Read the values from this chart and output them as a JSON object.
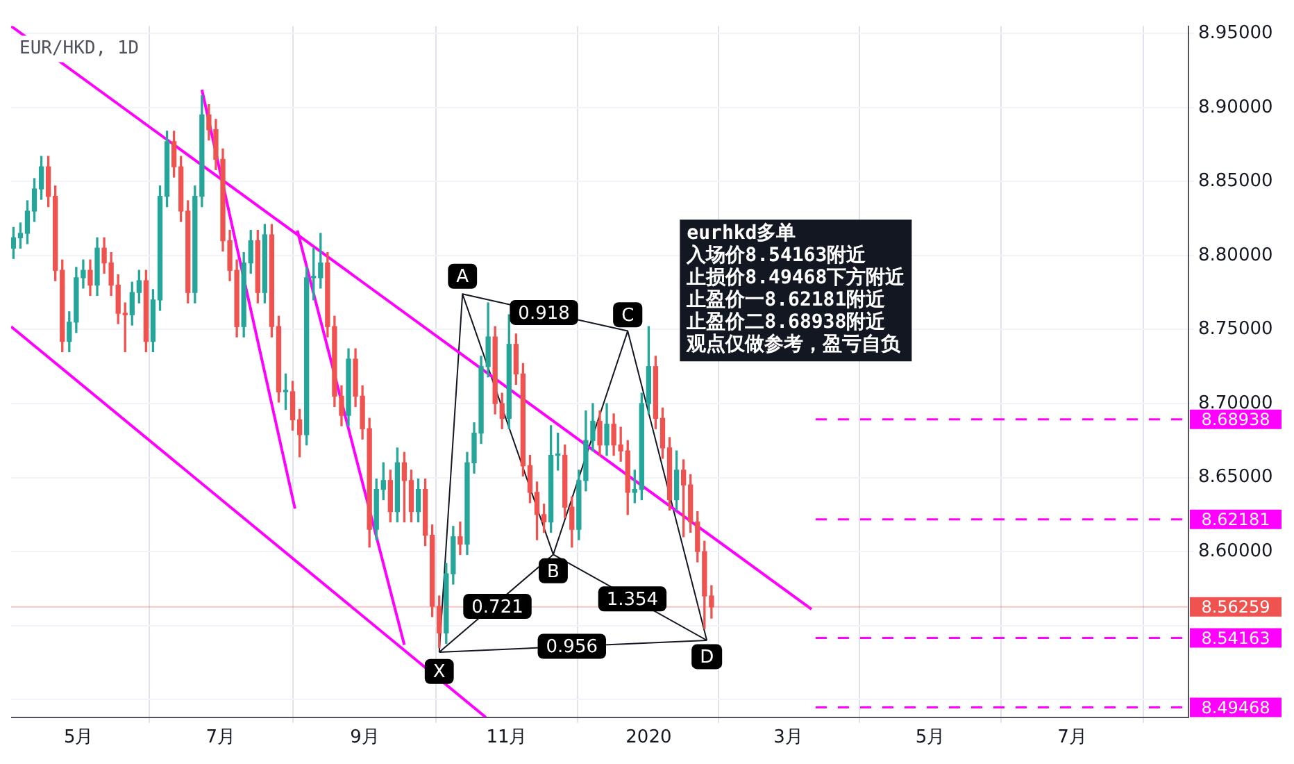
{
  "chart_data": {
    "type": "candlestick",
    "title": "EUR/HKD, 1D",
    "x": [
      "2019-04-03",
      "2019-04-06",
      "2019-04-09",
      "2019-04-12",
      "2019-04-15",
      "2019-04-18",
      "2019-04-21",
      "2019-04-24",
      "2019-04-27",
      "2019-04-30",
      "2019-05-03",
      "2019-05-06",
      "2019-05-09",
      "2019-05-12",
      "2019-05-15",
      "2019-05-18",
      "2019-05-21",
      "2019-05-24",
      "2019-05-27",
      "2019-05-30",
      "2019-06-02",
      "2019-06-05",
      "2019-06-08",
      "2019-06-11",
      "2019-06-14",
      "2019-06-17",
      "2019-06-20",
      "2019-06-23",
      "2019-06-26",
      "2019-06-29",
      "2019-07-02",
      "2019-07-05",
      "2019-07-08",
      "2019-07-11",
      "2019-07-14",
      "2019-07-17",
      "2019-07-20",
      "2019-07-23",
      "2019-07-26",
      "2019-07-29",
      "2019-08-01",
      "2019-08-04",
      "2019-08-07",
      "2019-08-10",
      "2019-08-13",
      "2019-08-16",
      "2019-08-19",
      "2019-08-22",
      "2019-08-25",
      "2019-08-28",
      "2019-08-31",
      "2019-09-03",
      "2019-09-06",
      "2019-09-09",
      "2019-09-12",
      "2019-09-15",
      "2019-09-18",
      "2019-09-21",
      "2019-09-24",
      "2019-09-27",
      "2019-09-30",
      "2019-10-03",
      "2019-10-06",
      "2019-10-09",
      "2019-10-12",
      "2019-10-15",
      "2019-10-18",
      "2019-10-21",
      "2019-10-24",
      "2019-10-27",
      "2019-10-30",
      "2019-11-02",
      "2019-11-05",
      "2019-11-08",
      "2019-11-11",
      "2019-11-14",
      "2019-11-17",
      "2019-11-20",
      "2019-11-23",
      "2019-11-26",
      "2019-11-29",
      "2019-12-02",
      "2019-12-05",
      "2019-12-08",
      "2019-12-11",
      "2019-12-14",
      "2019-12-17",
      "2019-12-20",
      "2019-12-23",
      "2019-12-26",
      "2019-12-29",
      "2020-01-01",
      "2020-01-04",
      "2020-01-07",
      "2020-01-10",
      "2020-01-13",
      "2020-01-16",
      "2020-01-19",
      "2020-01-22",
      "2020-01-25",
      "2020-01-28"
    ],
    "ohlc": [
      [
        8.805,
        8.819,
        8.798,
        8.812
      ],
      [
        8.812,
        8.822,
        8.805,
        8.815
      ],
      [
        8.815,
        8.837,
        8.808,
        8.83
      ],
      [
        8.83,
        8.852,
        8.823,
        8.845
      ],
      [
        8.845,
        8.867,
        8.838,
        8.86
      ],
      [
        8.86,
        8.867,
        8.833,
        8.84
      ],
      [
        8.84,
        8.847,
        8.783,
        8.79
      ],
      [
        8.79,
        8.797,
        8.735,
        8.742
      ],
      [
        8.742,
        8.762,
        8.735,
        8.755
      ],
      [
        8.755,
        8.792,
        8.748,
        8.785
      ],
      [
        8.785,
        8.797,
        8.778,
        8.79
      ],
      [
        8.79,
        8.797,
        8.773,
        8.78
      ],
      [
        8.78,
        8.812,
        8.773,
        8.805
      ],
      [
        8.805,
        8.812,
        8.788,
        8.795
      ],
      [
        8.795,
        8.802,
        8.773,
        8.78
      ],
      [
        8.78,
        8.787,
        8.754,
        8.761
      ],
      [
        8.761,
        8.768,
        8.735,
        8.76
      ],
      [
        8.76,
        8.782,
        8.753,
        8.775
      ],
      [
        8.775,
        8.79,
        8.768,
        8.783
      ],
      [
        8.783,
        8.79,
        8.735,
        8.742
      ],
      [
        8.742,
        8.777,
        8.735,
        8.77
      ],
      [
        8.77,
        8.847,
        8.763,
        8.84
      ],
      [
        8.84,
        8.884,
        8.833,
        8.877
      ],
      [
        8.877,
        8.884,
        8.853,
        8.86
      ],
      [
        8.86,
        8.867,
        8.823,
        8.83
      ],
      [
        8.83,
        8.837,
        8.768,
        8.775
      ],
      [
        8.775,
        8.847,
        8.768,
        8.84
      ],
      [
        8.84,
        8.908,
        8.833,
        8.895
      ],
      [
        8.895,
        8.902,
        8.878,
        8.885
      ],
      [
        8.885,
        8.892,
        8.858,
        8.865
      ],
      [
        8.865,
        8.872,
        8.803,
        8.81
      ],
      [
        8.81,
        8.817,
        8.783,
        8.79
      ],
      [
        8.79,
        8.797,
        8.745,
        8.752
      ],
      [
        8.752,
        8.802,
        8.745,
        8.795
      ],
      [
        8.795,
        8.817,
        8.788,
        8.81
      ],
      [
        8.81,
        8.817,
        8.768,
        8.775
      ],
      [
        8.775,
        8.821,
        8.768,
        8.814
      ],
      [
        8.814,
        8.821,
        8.745,
        8.752
      ],
      [
        8.752,
        8.759,
        8.701,
        8.708
      ],
      [
        8.708,
        8.72,
        8.696,
        8.708
      ],
      [
        8.708,
        8.715,
        8.682,
        8.689
      ],
      [
        8.689,
        8.696,
        8.664,
        8.679
      ],
      [
        8.679,
        8.792,
        8.672,
        8.785
      ],
      [
        8.785,
        8.805,
        8.77,
        8.785
      ],
      [
        8.785,
        8.815,
        8.778,
        8.795
      ],
      [
        8.795,
        8.802,
        8.745,
        8.752
      ],
      [
        8.752,
        8.759,
        8.698,
        8.705
      ],
      [
        8.705,
        8.712,
        8.685,
        8.692
      ],
      [
        8.692,
        8.737,
        8.685,
        8.73
      ],
      [
        8.73,
        8.737,
        8.698,
        8.705
      ],
      [
        8.705,
        8.712,
        8.676,
        8.683
      ],
      [
        8.683,
        8.69,
        8.603,
        8.615
      ],
      [
        8.615,
        8.649,
        8.608,
        8.642
      ],
      [
        8.642,
        8.66,
        8.635,
        8.648
      ],
      [
        8.648,
        8.655,
        8.62,
        8.627
      ],
      [
        8.627,
        8.67,
        8.62,
        8.66
      ],
      [
        8.66,
        8.667,
        8.62,
        8.648
      ],
      [
        8.648,
        8.655,
        8.62,
        8.627
      ],
      [
        8.627,
        8.649,
        8.62,
        8.642
      ],
      [
        8.642,
        8.649,
        8.604,
        8.611
      ],
      [
        8.611,
        8.618,
        8.556,
        8.563
      ],
      [
        8.563,
        8.57,
        8.535,
        8.545
      ],
      [
        8.545,
        8.592,
        8.538,
        8.585
      ],
      [
        8.585,
        8.617,
        8.578,
        8.61
      ],
      [
        8.61,
        8.62,
        8.598,
        8.605
      ],
      [
        8.605,
        8.667,
        8.598,
        8.66
      ],
      [
        8.66,
        8.687,
        8.653,
        8.68
      ],
      [
        8.68,
        8.732,
        8.673,
        8.725
      ],
      [
        8.725,
        8.768,
        8.718,
        8.745
      ],
      [
        8.745,
        8.752,
        8.693,
        8.7
      ],
      [
        8.7,
        8.707,
        8.683,
        8.69
      ],
      [
        8.69,
        8.76,
        8.683,
        8.74
      ],
      [
        8.74,
        8.747,
        8.713,
        8.72
      ],
      [
        8.72,
        8.727,
        8.651,
        8.658
      ],
      [
        8.658,
        8.665,
        8.633,
        8.64
      ],
      [
        8.64,
        8.647,
        8.608,
        8.625
      ],
      [
        8.625,
        8.632,
        8.613,
        8.62
      ],
      [
        8.62,
        8.685,
        8.613,
        8.665
      ],
      [
        8.665,
        8.68,
        8.655,
        8.665
      ],
      [
        8.665,
        8.672,
        8.623,
        8.63
      ],
      [
        8.63,
        8.637,
        8.603,
        8.615
      ],
      [
        8.615,
        8.655,
        8.608,
        8.648
      ],
      [
        8.648,
        8.695,
        8.641,
        8.675
      ],
      [
        8.675,
        8.7,
        8.668,
        8.688
      ],
      [
        8.688,
        8.695,
        8.665,
        8.672
      ],
      [
        8.672,
        8.7,
        8.665,
        8.686
      ],
      [
        8.686,
        8.693,
        8.665,
        8.672
      ],
      [
        8.672,
        8.684,
        8.661,
        8.668
      ],
      [
        8.668,
        8.675,
        8.625,
        8.64
      ],
      [
        8.64,
        8.655,
        8.633,
        8.642
      ],
      [
        8.642,
        8.707,
        8.635,
        8.7
      ],
      [
        8.7,
        8.752,
        8.693,
        8.725
      ],
      [
        8.725,
        8.732,
        8.683,
        8.69
      ],
      [
        8.69,
        8.697,
        8.663,
        8.67
      ],
      [
        8.67,
        8.677,
        8.628,
        8.635
      ],
      [
        8.635,
        8.668,
        8.628,
        8.655
      ],
      [
        8.655,
        8.662,
        8.61,
        8.645
      ],
      [
        8.645,
        8.652,
        8.613,
        8.62
      ],
      [
        8.62,
        8.627,
        8.593,
        8.6
      ],
      [
        8.6,
        8.607,
        8.548,
        8.57
      ],
      [
        8.57,
        8.577,
        8.555,
        8.56259
      ]
    ],
    "series": [
      {
        "type": "line",
        "color": "#ff00ff",
        "x": [
          "2019-04-02",
          "2020-03-11"
        ],
        "values": [
          8.955,
          8.561
        ]
      },
      {
        "type": "line",
        "color": "#ff00ff",
        "x": [
          "2019-04-02",
          "2019-10-23"
        ],
        "values": [
          8.752,
          8.488
        ]
      },
      {
        "type": "line",
        "color": "#ff00ff",
        "x": [
          "2019-06-23",
          "2019-08-02"
        ],
        "values": [
          8.912,
          8.629
        ]
      },
      {
        "type": "line",
        "color": "#ff00ff",
        "x": [
          "2019-08-03",
          "2019-09-18"
        ],
        "values": [
          8.817,
          8.537
        ]
      },
      {
        "type": "line",
        "color": "#131722",
        "x": [
          "2019-10-03",
          "2019-10-13",
          "2019-11-21",
          "2019-12-23",
          "2020-01-26"
        ],
        "values": [
          8.532,
          8.774,
          8.598,
          8.749,
          8.54
        ]
      },
      {
        "type": "line",
        "color": "#131722",
        "x": [
          "2019-10-03",
          "2019-11-21",
          "2020-01-26"
        ],
        "values": [
          8.532,
          8.598,
          8.54
        ]
      },
      {
        "type": "line",
        "color": "#131722",
        "x": [
          "2019-10-13",
          "2019-12-23"
        ],
        "values": [
          8.774,
          8.749
        ]
      },
      {
        "type": "line",
        "color": "#131722",
        "x": [
          "2019-10-03",
          "2020-01-26"
        ],
        "values": [
          8.532,
          8.54
        ]
      }
    ],
    "xlim": [
      "2019-04-02",
      "2020-08-20"
    ],
    "xticks": [
      {
        "value": "2019-05-01",
        "label": "5月"
      },
      {
        "value": "2019-07-01",
        "label": "7月"
      },
      {
        "value": "2019-09-01",
        "label": "9月"
      },
      {
        "value": "2019-11-01",
        "label": "11月"
      },
      {
        "value": "2020-01-01",
        "label": "2020"
      },
      {
        "value": "2020-03-01",
        "label": "3月"
      },
      {
        "value": "2020-05-01",
        "label": "5月"
      },
      {
        "value": "2020-07-01",
        "label": "7月"
      }
    ],
    "ylim": [
      8.488,
      8.955
    ],
    "yticks": [
      {
        "value": 8.5,
        "label": null
      },
      {
        "value": 8.55,
        "label": null
      },
      {
        "value": 8.6,
        "label": "8.60000"
      },
      {
        "value": 8.65,
        "label": "8.65000"
      },
      {
        "value": 8.7,
        "label": "8.70000"
      },
      {
        "value": 8.75,
        "label": "8.75000"
      },
      {
        "value": 8.8,
        "label": "8.80000"
      },
      {
        "value": 8.85,
        "label": "8.85000"
      },
      {
        "value": 8.9,
        "label": "8.90000"
      },
      {
        "value": 8.95,
        "label": "8.95000"
      }
    ],
    "grid": true,
    "ref_lines": [
      {
        "axis": "y",
        "value": 8.68938,
        "label": "8.68938",
        "color": "#ff00ff",
        "line_style": "dashed"
      },
      {
        "axis": "y",
        "value": 8.62181,
        "label": "8.62181",
        "color": "#ff00ff",
        "line_style": "dashed"
      },
      {
        "axis": "y",
        "value": 8.54163,
        "label": "8.54163",
        "color": "#ff00ff",
        "line_style": "dashed"
      },
      {
        "axis": "y",
        "value": 8.49468,
        "label": "8.49468",
        "color": "#ff00ff",
        "line_style": "dashed"
      },
      {
        "axis": "y",
        "value": 8.56259,
        "label": "8.56259",
        "color": "#ef5350",
        "line_style": "solid"
      }
    ],
    "annotations": [
      {
        "text": "X",
        "x": "2019-10-03",
        "y": 8.519
      },
      {
        "text": "A",
        "x": "2019-10-13",
        "y": 8.786
      },
      {
        "text": "B",
        "x": "2019-11-21",
        "y": 8.587
      },
      {
        "text": "C",
        "x": "2019-12-23",
        "y": 8.76
      },
      {
        "text": "D",
        "x": "2020-01-26",
        "y": 8.529
      },
      {
        "text": "0.918",
        "x": "2019-11-17",
        "y": 8.7615
      },
      {
        "text": "0.721",
        "x": "2019-10-28",
        "y": 8.563
      },
      {
        "text": "1.354",
        "x": "2019-12-25",
        "y": 8.568
      },
      {
        "text": "0.956",
        "x": "2019-11-29",
        "y": 8.536
      },
      "eurhkd多单",
      "入场价8.54163附近",
      "止损价8.49468下方附近",
      "止盈价一8.62181附近",
      "止盈价二8.68938附近",
      "观点仅做参考，盈亏自负"
    ]
  }
}
